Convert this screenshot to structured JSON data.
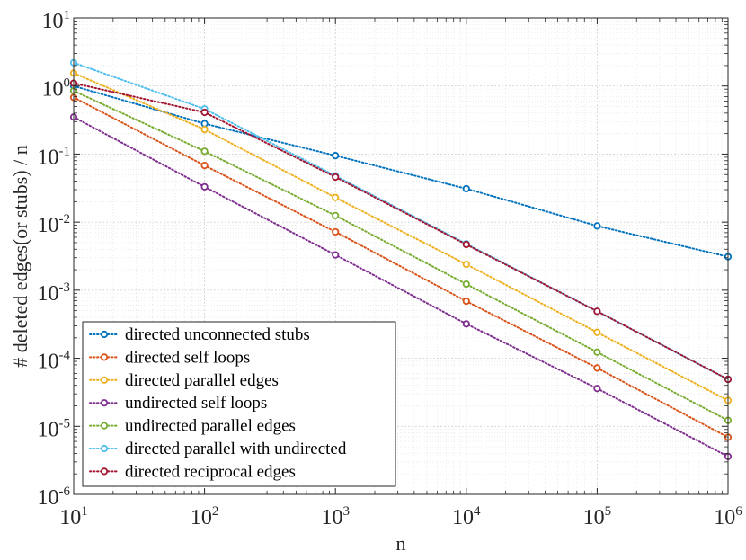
{
  "chart_data": {
    "type": "line",
    "title": "",
    "xlabel": "n",
    "ylabel": "# deleted edges(or stubs) / n",
    "xscale": "log",
    "yscale": "log",
    "xlim": [
      10,
      1000000
    ],
    "ylim": [
      1e-06,
      10
    ],
    "grid": true,
    "minor_grid": true,
    "legend_location": "bottom-left",
    "x": [
      10,
      100,
      1000,
      10000,
      100000,
      1000000
    ],
    "x_ticks": [
      {
        "base": "10",
        "exp": "1"
      },
      {
        "base": "10",
        "exp": "2"
      },
      {
        "base": "10",
        "exp": "3"
      },
      {
        "base": "10",
        "exp": "4"
      },
      {
        "base": "10",
        "exp": "5"
      },
      {
        "base": "10",
        "exp": "6"
      }
    ],
    "y_ticks": [
      {
        "base": "10",
        "exp": "-6"
      },
      {
        "base": "10",
        "exp": "-5"
      },
      {
        "base": "10",
        "exp": "-4"
      },
      {
        "base": "10",
        "exp": "-3"
      },
      {
        "base": "10",
        "exp": "-2"
      },
      {
        "base": "10",
        "exp": "-1"
      },
      {
        "base": "10",
        "exp": "0"
      },
      {
        "base": "10",
        "exp": "1"
      }
    ],
    "series": [
      {
        "name": "directed unconnected stubs",
        "color": "#0072BD",
        "values": [
          1.0,
          0.28,
          0.095,
          0.031,
          0.0088,
          0.0031
        ]
      },
      {
        "name": "directed self loops",
        "color": "#D95319",
        "values": [
          0.68,
          0.068,
          0.0072,
          0.00069,
          7.2e-05,
          6.9e-06
        ]
      },
      {
        "name": "directed parallel edges",
        "color": "#EDB120",
        "values": [
          1.55,
          0.23,
          0.023,
          0.0024,
          0.00024,
          2.4e-05
        ]
      },
      {
        "name": "undirected self loops",
        "color": "#7E2F8E",
        "values": [
          0.35,
          0.033,
          0.0033,
          0.00032,
          3.6e-05,
          3.6e-06
        ]
      },
      {
        "name": "undirected parallel edges",
        "color": "#77AC30",
        "values": [
          0.85,
          0.11,
          0.0125,
          0.00123,
          0.000123,
          1.22e-05
        ]
      },
      {
        "name": "directed parallel with undirected",
        "color": "#4DBEEE",
        "values": [
          2.2,
          0.46,
          0.048,
          0.0048,
          0.00049,
          4.9e-05
        ]
      },
      {
        "name": "directed reciprocal edges",
        "color": "#A2142F",
        "values": [
          1.1,
          0.41,
          0.046,
          0.0047,
          0.00049,
          4.9e-05
        ]
      }
    ]
  }
}
